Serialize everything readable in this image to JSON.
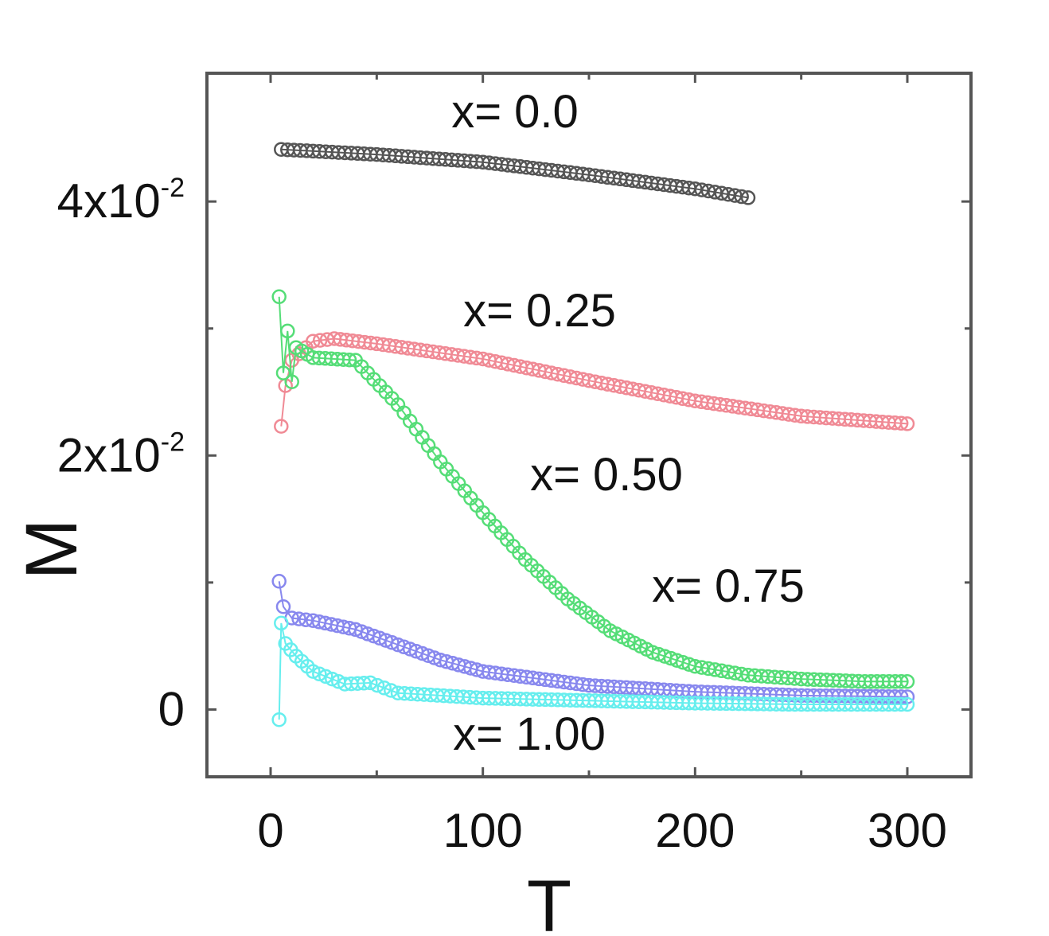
{
  "chart_data": {
    "type": "scatter",
    "xlabel": "T",
    "ylabel": "M",
    "xlim": [
      -30,
      330
    ],
    "ylim": [
      -0.0053,
      0.0501
    ],
    "xticks": [
      {
        "value": 0,
        "label": "0"
      },
      {
        "value": 100,
        "label": "100"
      },
      {
        "value": 200,
        "label": "200"
      },
      {
        "value": 300,
        "label": "300"
      }
    ],
    "yticks": [
      {
        "value": 0,
        "label_base": "0",
        "label_exp": ""
      },
      {
        "value": 0.02,
        "label_base": "2x10",
        "label_exp": "-2"
      },
      {
        "value": 0.04,
        "label_base": "4x10",
        "label_exp": "-2"
      }
    ],
    "grid": false,
    "series": [
      {
        "label": "x= 0.0",
        "color": "#555555",
        "points": [
          [
            5,
            0.0441
          ],
          [
            50,
            0.0437
          ],
          [
            100,
            0.0431
          ],
          [
            150,
            0.0421
          ],
          [
            200,
            0.041
          ],
          [
            225,
            0.0403
          ]
        ]
      },
      {
        "label": "x= 0.25",
        "color": "#f08a95",
        "points": [
          [
            5,
            0.0223
          ],
          [
            7,
            0.0255
          ],
          [
            10,
            0.0275
          ],
          [
            20,
            0.029
          ],
          [
            30,
            0.0292
          ],
          [
            50,
            0.0288
          ],
          [
            100,
            0.0276
          ],
          [
            150,
            0.0259
          ],
          [
            200,
            0.0243
          ],
          [
            250,
            0.0231
          ],
          [
            300,
            0.0225
          ]
        ]
      },
      {
        "label": "x= 0.50",
        "color": "#55dd77",
        "points": [
          [
            4,
            0.0325
          ],
          [
            6,
            0.0265
          ],
          [
            8,
            0.0298
          ],
          [
            10,
            0.0258
          ],
          [
            12,
            0.0285
          ],
          [
            20,
            0.0277
          ],
          [
            40,
            0.0275
          ],
          [
            60,
            0.024
          ],
          [
            80,
            0.0195
          ],
          [
            100,
            0.0155
          ],
          [
            120,
            0.0118
          ],
          [
            140,
            0.0087
          ],
          [
            160,
            0.0062
          ],
          [
            180,
            0.0045
          ],
          [
            200,
            0.0034
          ],
          [
            225,
            0.0027
          ],
          [
            250,
            0.0024
          ],
          [
            280,
            0.0022
          ],
          [
            300,
            0.0022
          ]
        ]
      },
      {
        "label": "x= 0.75",
        "color": "#8888ee",
        "points": [
          [
            4,
            0.0101
          ],
          [
            6,
            0.0081
          ],
          [
            10,
            0.0072
          ],
          [
            20,
            0.007
          ],
          [
            40,
            0.0063
          ],
          [
            60,
            0.0051
          ],
          [
            80,
            0.0039
          ],
          [
            100,
            0.003
          ],
          [
            150,
            0.0019
          ],
          [
            200,
            0.0014
          ],
          [
            250,
            0.0011
          ],
          [
            300,
            0.001
          ]
        ]
      },
      {
        "label": "x= 1.00",
        "color": "#66eeee",
        "points": [
          [
            4,
            -0.0008
          ],
          [
            5,
            0.0068
          ],
          [
            7,
            0.0052
          ],
          [
            12,
            0.0042
          ],
          [
            20,
            0.003
          ],
          [
            35,
            0.002
          ],
          [
            47,
            0.0021
          ],
          [
            60,
            0.0013
          ],
          [
            100,
            0.0009
          ],
          [
            150,
            0.0007
          ],
          [
            200,
            0.0005
          ],
          [
            250,
            0.0004
          ],
          [
            300,
            0.0004
          ]
        ]
      }
    ]
  }
}
